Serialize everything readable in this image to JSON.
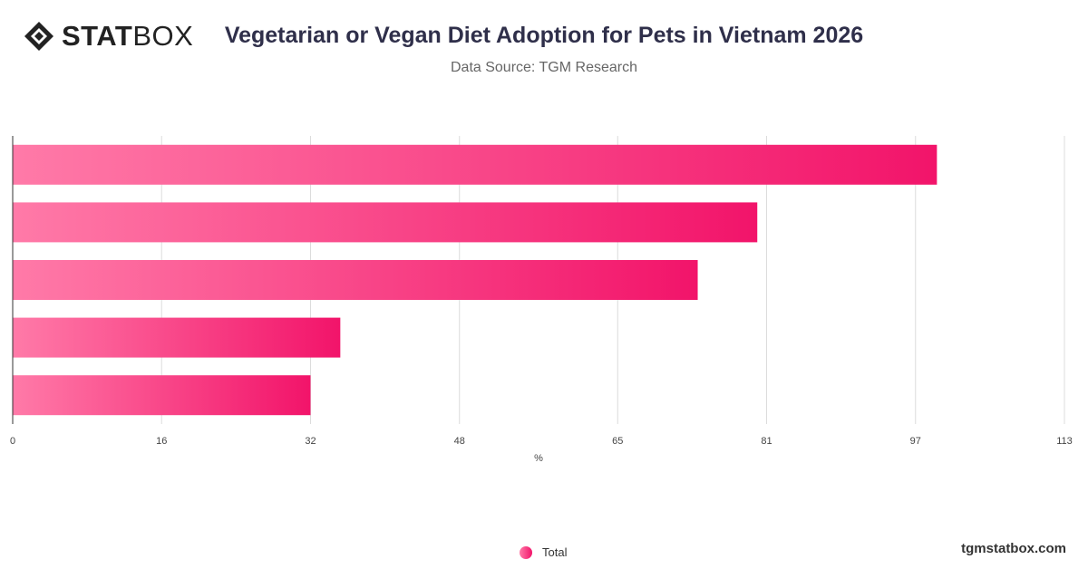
{
  "brand": {
    "logo_bold": "STAT",
    "logo_light": "BOX",
    "site": "tgmstatbox.com",
    "icon": "diamond-logo-icon"
  },
  "chart_data": {
    "type": "bar",
    "orientation": "horizontal",
    "title": "Vegetarian or Vegan Diet Adoption for Pets in Vietnam 2026",
    "subtitle": "Data Source: TGM Research",
    "xlabel": "%",
    "xlim": [
      0,
      113
    ],
    "x_ticks": [
      "0",
      "16",
      "32",
      "48",
      "65",
      "81",
      "97",
      "113"
    ],
    "x_tick_values": [
      0,
      16,
      32,
      48,
      65,
      81,
      97,
      113
    ],
    "grid": true,
    "legend": "bottom-center",
    "series": [
      {
        "name": "Total",
        "values": [
          99.3,
          80,
          73.6,
          35.2,
          32
        ]
      }
    ],
    "colors": {
      "bar_start": "#ff7aa8",
      "bar_end": "#f2146a",
      "grid": "#dcdcdc",
      "axis": "#333333"
    }
  }
}
